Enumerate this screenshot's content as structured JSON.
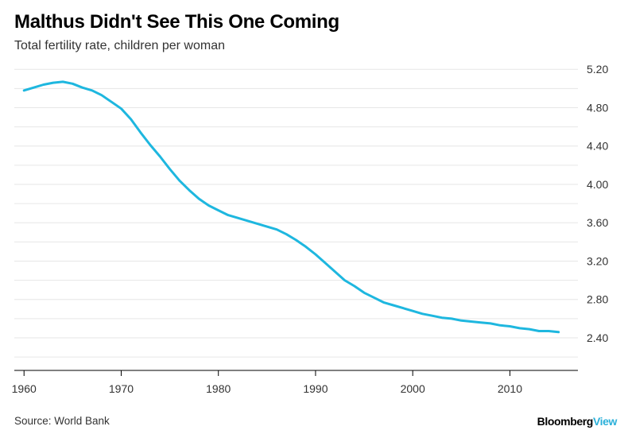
{
  "header": {
    "title": "Malthus Didn't See This One Coming",
    "subtitle": "Total fertility rate, children per woman"
  },
  "footer": {
    "source": "Source: World Bank",
    "brand_part1": "Bloomberg",
    "brand_part2": "View"
  },
  "colors": {
    "line": "#1eb7df",
    "grid": "#e6e6e6",
    "axis": "#000000",
    "brand_accent": "#2bb0d9"
  },
  "chart_data": {
    "type": "line",
    "title": "Malthus Didn't See This One Coming",
    "subtitle": "Total fertility rate, children per woman",
    "xlabel": "",
    "ylabel": "",
    "xlim": [
      1959,
      2017
    ],
    "ylim": [
      2.06,
      5.26
    ],
    "x_ticks": [
      1960,
      1970,
      1980,
      1990,
      2000,
      2010
    ],
    "x_tick_labels": [
      "1960",
      "1970",
      "1980",
      "1990",
      "2000",
      "2010"
    ],
    "y_ticks": [
      2.4,
      2.8,
      3.2,
      3.6,
      4.0,
      4.4,
      4.8,
      5.2
    ],
    "y_tick_labels": [
      "2.40",
      "2.80",
      "3.20",
      "3.60",
      "4.00",
      "4.40",
      "4.80",
      "5.20"
    ],
    "y_axis_side": "right",
    "grid": true,
    "series": [
      {
        "x": [
          1960,
          1961,
          1962,
          1963,
          1964,
          1965,
          1966,
          1967,
          1968,
          1969,
          1970,
          1971,
          1972,
          1973,
          1974,
          1975,
          1976,
          1977,
          1978,
          1979,
          1980,
          1981,
          1982,
          1983,
          1984,
          1985,
          1986,
          1987,
          1988,
          1989,
          1990,
          1991,
          1992,
          1993,
          1994,
          1995,
          1996,
          1997,
          1998,
          1999,
          2000,
          2001,
          2002,
          2003,
          2004,
          2005,
          2006,
          2007,
          2008,
          2009,
          2010,
          2011,
          2012,
          2013,
          2014,
          2015
        ],
        "values": [
          4.98,
          5.01,
          5.04,
          5.06,
          5.07,
          5.05,
          5.01,
          4.98,
          4.93,
          4.86,
          4.79,
          4.68,
          4.54,
          4.41,
          4.29,
          4.16,
          4.04,
          3.94,
          3.85,
          3.78,
          3.73,
          3.68,
          3.65,
          3.62,
          3.59,
          3.56,
          3.53,
          3.48,
          3.42,
          3.35,
          3.27,
          3.18,
          3.09,
          3.0,
          2.94,
          2.87,
          2.82,
          2.77,
          2.74,
          2.71,
          2.68,
          2.65,
          2.63,
          2.61,
          2.6,
          2.58,
          2.57,
          2.56,
          2.55,
          2.53,
          2.52,
          2.5,
          2.49,
          2.47,
          2.47,
          2.46
        ]
      }
    ]
  }
}
